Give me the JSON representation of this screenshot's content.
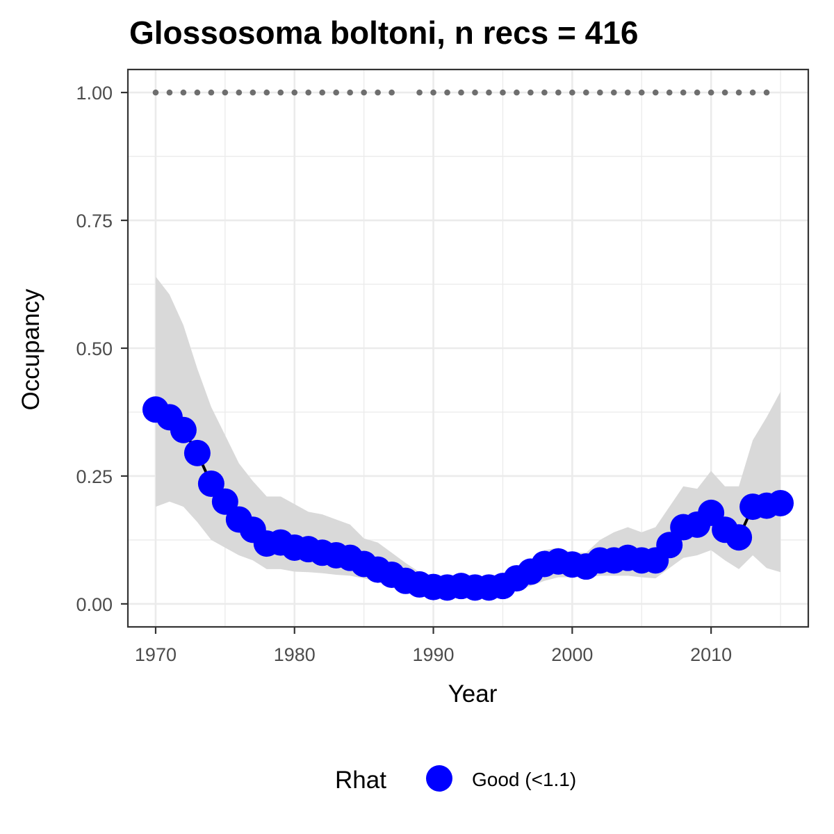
{
  "chart_data": {
    "type": "line",
    "title": "Glossosoma boltoni, n recs = 416",
    "xlabel": "Year",
    "ylabel": "Occupancy",
    "xlim": [
      1968,
      2017
    ],
    "ylim": [
      -0.045,
      1.045
    ],
    "x_ticks": [
      1970,
      1980,
      1990,
      2000,
      2010
    ],
    "y_ticks": [
      0.0,
      0.25,
      0.5,
      0.75,
      1.0
    ],
    "y_tick_labels": [
      "0.00",
      "0.25",
      "0.50",
      "0.75",
      "1.00"
    ],
    "grid": true,
    "legend_position": "bottom",
    "legend": {
      "title": "Rhat",
      "entries": [
        {
          "label": "Good (<1.1)",
          "color": "#0000ff"
        }
      ]
    },
    "colors": {
      "points": "#0000ff",
      "line": "#000000",
      "ribbon": "#d9d9d9",
      "record_dots": "#6e6e6e",
      "panel_border": "#333333",
      "grid": "#ebebeb"
    },
    "series": [
      {
        "x": [
          1970,
          1971,
          1972,
          1973,
          1974,
          1975,
          1976,
          1977,
          1978,
          1979,
          1980,
          1981,
          1982,
          1983,
          1984,
          1985,
          1986,
          1987,
          1988,
          1989,
          1990,
          1991,
          1992,
          1993,
          1994,
          1995,
          1996,
          1997,
          1998,
          1999,
          2000,
          2001,
          2002,
          2003,
          2004,
          2005,
          2006,
          2007,
          2008,
          2009,
          2010,
          2011,
          2012,
          2013,
          2014,
          2015
        ],
        "values": [
          0.38,
          0.365,
          0.34,
          0.295,
          0.235,
          0.2,
          0.165,
          0.145,
          0.118,
          0.12,
          0.11,
          0.107,
          0.1,
          0.095,
          0.09,
          0.078,
          0.067,
          0.057,
          0.045,
          0.038,
          0.033,
          0.032,
          0.035,
          0.032,
          0.032,
          0.035,
          0.05,
          0.063,
          0.078,
          0.083,
          0.077,
          0.073,
          0.085,
          0.085,
          0.09,
          0.085,
          0.085,
          0.115,
          0.15,
          0.155,
          0.178,
          0.145,
          0.13,
          0.19,
          0.192,
          0.197
        ],
        "lower": [
          0.19,
          0.2,
          0.19,
          0.16,
          0.125,
          0.11,
          0.095,
          0.085,
          0.068,
          0.068,
          0.063,
          0.062,
          0.06,
          0.057,
          0.055,
          0.05,
          0.043,
          0.035,
          0.027,
          0.022,
          0.019,
          0.018,
          0.02,
          0.018,
          0.018,
          0.02,
          0.028,
          0.035,
          0.045,
          0.052,
          0.052,
          0.052,
          0.055,
          0.055,
          0.055,
          0.052,
          0.05,
          0.07,
          0.09,
          0.095,
          0.105,
          0.085,
          0.068,
          0.095,
          0.07,
          0.062
        ],
        "upper": [
          0.64,
          0.605,
          0.545,
          0.46,
          0.385,
          0.33,
          0.275,
          0.24,
          0.21,
          0.21,
          0.195,
          0.18,
          0.175,
          0.165,
          0.155,
          0.128,
          0.12,
          0.1,
          0.08,
          0.062,
          0.055,
          0.052,
          0.055,
          0.052,
          0.052,
          0.06,
          0.072,
          0.085,
          0.105,
          0.11,
          0.1,
          0.1,
          0.125,
          0.14,
          0.15,
          0.14,
          0.15,
          0.19,
          0.23,
          0.225,
          0.26,
          0.23,
          0.23,
          0.32,
          0.365,
          0.415
        ]
      }
    ],
    "record_years": [
      1970,
      1971,
      1972,
      1973,
      1974,
      1975,
      1976,
      1977,
      1978,
      1979,
      1980,
      1981,
      1982,
      1983,
      1984,
      1985,
      1986,
      1987,
      1989,
      1990,
      1991,
      1992,
      1993,
      1994,
      1995,
      1996,
      1997,
      1998,
      1999,
      2000,
      2001,
      2002,
      2003,
      2004,
      2005,
      2006,
      2007,
      2008,
      2009,
      2010,
      2011,
      2012,
      2013,
      2014
    ],
    "record_value": 1.0
  }
}
